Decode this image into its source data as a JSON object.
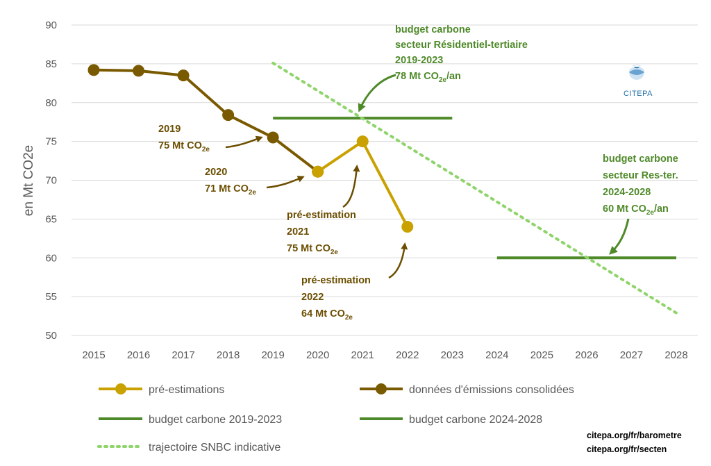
{
  "chart_data": {
    "type": "line",
    "ylabel": "en Mt CO2e",
    "xlabel": "",
    "title": "",
    "ylim": [
      50,
      90
    ],
    "yticks": [
      50,
      55,
      60,
      65,
      70,
      75,
      80,
      85,
      90
    ],
    "xlim": [
      2015,
      2028
    ],
    "categories": [
      "2015",
      "2016",
      "2017",
      "2018",
      "2019",
      "2020",
      "2021",
      "2022",
      "2023",
      "2024",
      "2025",
      "2026",
      "2027",
      "2028"
    ],
    "grid": "horizontal",
    "legend_position": "bottom",
    "series": [
      {
        "name": "données d'émissions consolidées",
        "color": "#7a5a00",
        "points": [
          [
            2015,
            84.2
          ],
          [
            2016,
            84.1
          ],
          [
            2017,
            83.5
          ],
          [
            2018,
            78.4
          ],
          [
            2019,
            75.5
          ],
          [
            2020,
            71.1
          ]
        ]
      },
      {
        "name": "pré-estimations",
        "color": "#c9a100",
        "points": [
          [
            2020,
            71.1
          ],
          [
            2021,
            75.0
          ],
          [
            2022,
            64.0
          ]
        ]
      },
      {
        "name": "budget carbone 2019-2023",
        "color": "#4f8a2a",
        "points": [
          [
            2019,
            78
          ],
          [
            2023,
            78
          ]
        ]
      },
      {
        "name": "budget carbone 2024-2028",
        "color": "#4f8a2a",
        "points": [
          [
            2024,
            60
          ],
          [
            2028,
            60
          ]
        ]
      },
      {
        "name": "trajectoire SNBC indicative",
        "color": "#8fd46a",
        "points": [
          [
            2019,
            85.1
          ],
          [
            2028,
            52.9
          ]
        ]
      }
    ],
    "annotations": [
      {
        "lines": [
          "2019",
          "75 Mt CO",
          "2e",
          ""
        ],
        "kind": "brown"
      },
      {
        "lines": [
          "2020",
          "71 Mt CO",
          "2e",
          ""
        ],
        "kind": "brown"
      },
      {
        "lines": [
          "pré-estimation",
          "2021",
          "75 Mt CO",
          "2e",
          ""
        ],
        "kind": "yellow"
      },
      {
        "lines": [
          "pré-estimation",
          "2022",
          "64 Mt CO",
          "2e",
          ""
        ],
        "kind": "yellow"
      },
      {
        "lines": [
          "budget carbone",
          "secteur Résidentiel-tertiaire",
          "2019-2023",
          "78 Mt CO",
          "2e",
          "/an"
        ],
        "kind": "green"
      },
      {
        "lines": [
          "budget carbone",
          "secteur Res-ter.",
          "2024-2028",
          "60 Mt CO",
          "2e",
          "/an"
        ],
        "kind": "green"
      }
    ]
  },
  "legend": {
    "preestimations": "pré-estimations",
    "consolidated": "données d'émissions consolidées",
    "budget1": "budget carbone 2019-2023",
    "budget2": "budget carbone 2024-2028",
    "snbc": "trajectoire SNBC indicative"
  },
  "footer": {
    "link1": "citepa.org/fr/barometre",
    "link2": "citepa.org/fr/secten"
  },
  "logo": {
    "text": "CITEPA",
    "icon": "globe-icon"
  },
  "ann": {
    "a2019_year": "2019",
    "a2019_val": "75 Mt CO",
    "a2019_sub": "2e",
    "a2020_year": "2020",
    "a2020_val": "71 Mt CO",
    "a2020_sub": "2e",
    "a2021_l1": "pré-estimation",
    "a2021_year": "2021",
    "a2021_val": "75 Mt CO",
    "a2021_sub": "2e",
    "a2022_l1": "pré-estimation",
    "a2022_year": "2022",
    "a2022_val": "64 Mt CO",
    "a2022_sub": "2e",
    "b1_l1": "budget carbone",
    "b1_l2": "secteur Résidentiel-tertiaire",
    "b1_l3": "2019-2023",
    "b1_val": "78 Mt CO",
    "b1_sub": "2e",
    "b1_unit": "/an",
    "b2_l1": "budget carbone",
    "b2_l2": "secteur Res-ter.",
    "b2_l3": "2024-2028",
    "b2_val": "60 Mt CO",
    "b2_sub": "2e",
    "b2_unit": "/an"
  }
}
